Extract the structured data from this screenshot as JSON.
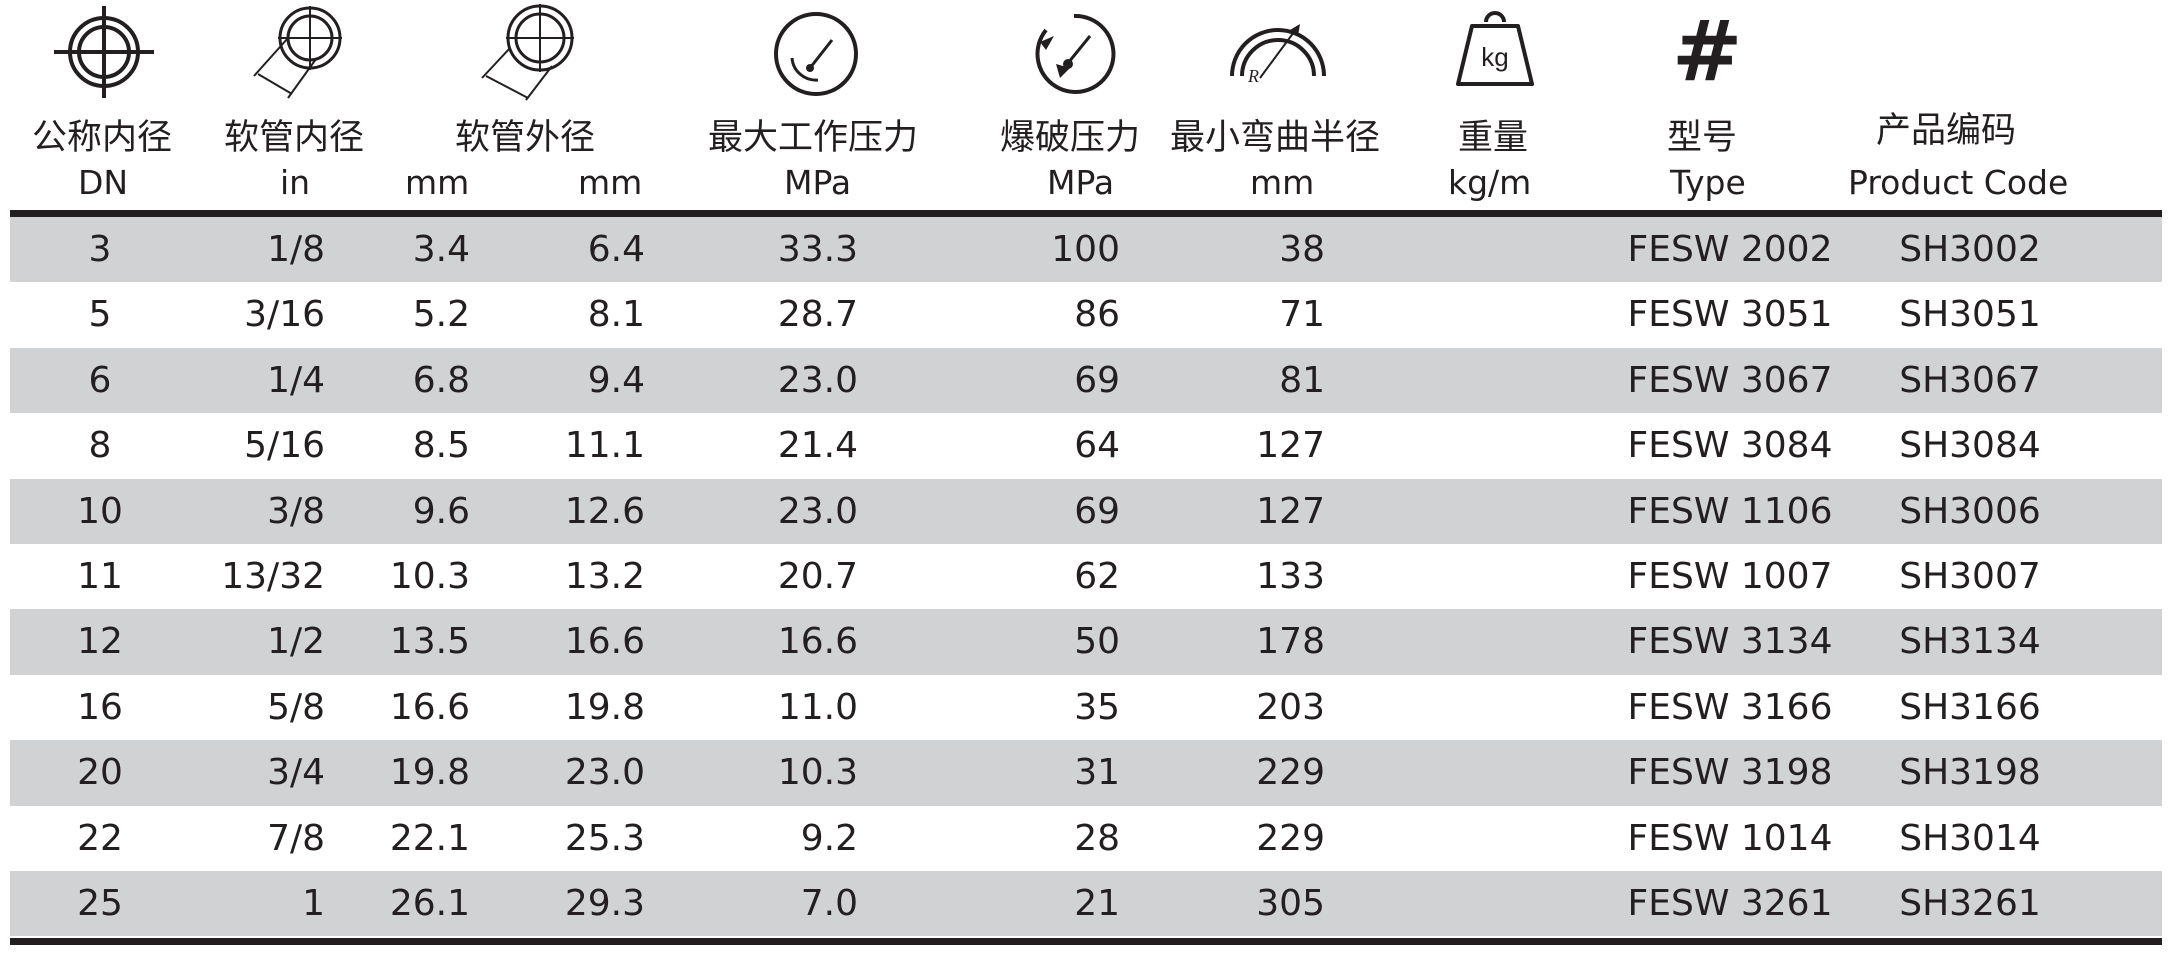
{
  "header": {
    "dn": {
      "label": "公称内径",
      "unit": "DN"
    },
    "id_in": {
      "label": "软管内径",
      "unit": "in"
    },
    "id_mm": {
      "unit": "mm"
    },
    "od": {
      "label": "软管外径",
      "unit": "mm"
    },
    "wp": {
      "label": "最大工作压力",
      "unit": "MPa"
    },
    "bp": {
      "label": "爆破压力",
      "unit": "MPa"
    },
    "br": {
      "label": "最小弯曲半径",
      "unit": "mm"
    },
    "wt": {
      "label": "重量",
      "unit": "kg/m",
      "icon_text": "kg"
    },
    "type": {
      "label": "型号",
      "unit": "Type",
      "icon_text": "#"
    },
    "code": {
      "label": "产品编码",
      "unit": "Product Code"
    }
  },
  "colors": {
    "shade": "#d1d2d4",
    "ink": "#231f20"
  },
  "rows": [
    {
      "dn": "3",
      "in": "1/8",
      "id": "3.4",
      "od": "6.4",
      "wp": "33.3",
      "bp": "100",
      "br": "38",
      "wt": "",
      "type": "FESW 2002",
      "code": "SH3002"
    },
    {
      "dn": "5",
      "in": "3/16",
      "id": "5.2",
      "od": "8.1",
      "wp": "28.7",
      "bp": "86",
      "br": "71",
      "wt": "",
      "type": "FESW 3051",
      "code": "SH3051"
    },
    {
      "dn": "6",
      "in": "1/4",
      "id": "6.8",
      "od": "9.4",
      "wp": "23.0",
      "bp": "69",
      "br": "81",
      "wt": "",
      "type": "FESW 3067",
      "code": "SH3067"
    },
    {
      "dn": "8",
      "in": "5/16",
      "id": "8.5",
      "od": "11.1",
      "wp": "21.4",
      "bp": "64",
      "br": "127",
      "wt": "",
      "type": "FESW 3084",
      "code": "SH3084"
    },
    {
      "dn": "10",
      "in": "3/8",
      "id": "9.6",
      "od": "12.6",
      "wp": "23.0",
      "bp": "69",
      "br": "127",
      "wt": "",
      "type": "FESW 1106",
      "code": "SH3006"
    },
    {
      "dn": "11",
      "in": "13/32",
      "id": "10.3",
      "od": "13.2",
      "wp": "20.7",
      "bp": "62",
      "br": "133",
      "wt": "",
      "type": "FESW 1007",
      "code": "SH3007"
    },
    {
      "dn": "12",
      "in": "1/2",
      "id": "13.5",
      "od": "16.6",
      "wp": "16.6",
      "bp": "50",
      "br": "178",
      "wt": "",
      "type": "FESW 3134",
      "code": "SH3134"
    },
    {
      "dn": "16",
      "in": "5/8",
      "id": "16.6",
      "od": "19.8",
      "wp": "11.0",
      "bp": "35",
      "br": "203",
      "wt": "",
      "type": "FESW 3166",
      "code": "SH3166"
    },
    {
      "dn": "20",
      "in": "3/4",
      "id": "19.8",
      "od": "23.0",
      "wp": "10.3",
      "bp": "31",
      "br": "229",
      "wt": "",
      "type": "FESW 3198",
      "code": "SH3198"
    },
    {
      "dn": "22",
      "in": "7/8",
      "id": "22.1",
      "od": "25.3",
      "wp": "9.2",
      "bp": "28",
      "br": "229",
      "wt": "",
      "type": "FESW 1014",
      "code": "SH3014"
    },
    {
      "dn": "25",
      "in": "1",
      "id": "26.1",
      "od": "29.3",
      "wp": "7.0",
      "bp": "21",
      "br": "305",
      "wt": "",
      "type": "FESW 3261",
      "code": "SH3261"
    }
  ]
}
